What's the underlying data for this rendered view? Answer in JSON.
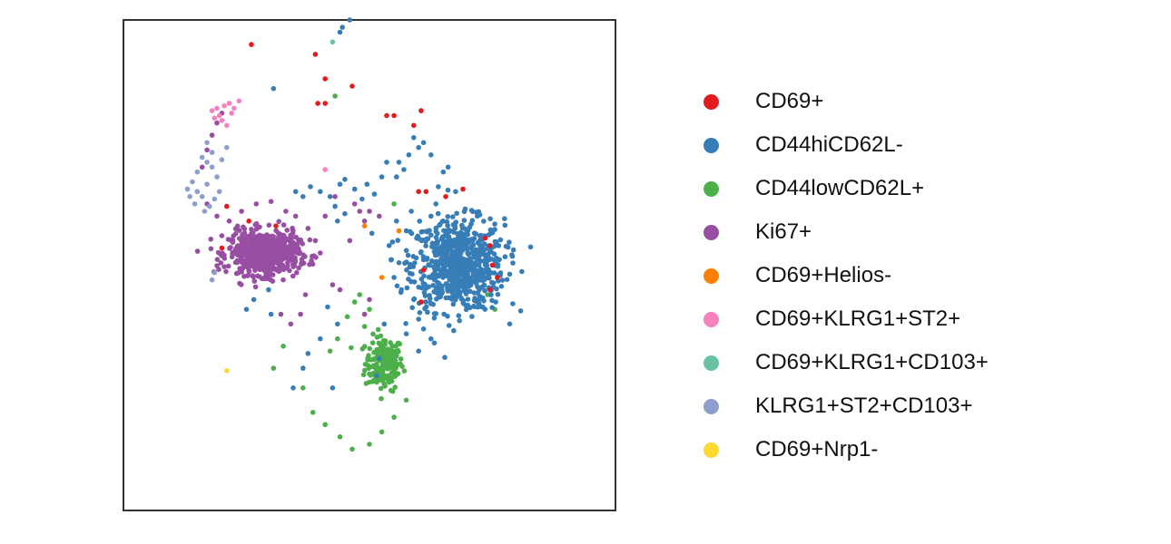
{
  "chart_data": {
    "type": "scatter",
    "title": "",
    "xlabel": "",
    "ylabel": "",
    "axes_ticks": "none",
    "grid": false,
    "legend_position": "right",
    "series": [
      {
        "name": "CD69+",
        "color": "#e41a1c",
        "points": [
          [
            -0.48,
            0.9
          ],
          [
            -0.22,
            0.86
          ],
          [
            -0.18,
            0.76
          ],
          [
            -0.07,
            0.73
          ],
          [
            0.07,
            0.61
          ],
          [
            0.1,
            0.61
          ],
          [
            -0.21,
            0.66
          ],
          [
            -0.18,
            0.66
          ],
          [
            0.21,
            0.63
          ],
          [
            0.18,
            0.57
          ],
          [
            -0.58,
            0.24
          ],
          [
            -0.6,
            0.07
          ],
          [
            -0.49,
            0.18
          ],
          [
            -0.38,
            0.16
          ],
          [
            0.23,
            0.3
          ],
          [
            0.31,
            0.28
          ],
          [
            0.38,
            0.31
          ],
          [
            0.47,
            0.11
          ],
          [
            0.52,
            -0.05
          ],
          [
            0.49,
            -0.1
          ],
          [
            0.21,
            -0.15
          ],
          [
            0.2,
            0.3
          ],
          [
            0.22,
            -0.02
          ],
          [
            0.49,
            0.08
          ],
          [
            0.5,
            0.0
          ]
        ]
      },
      {
        "name": "CD44hiCD62L-",
        "cluster": {
          "center": [
            0.36,
            0.0
          ],
          "spread": [
            0.17,
            0.17
          ],
          "count": 700
        },
        "color": "#377eb8",
        "points": [
          [
            -0.08,
            1.0
          ],
          [
            -0.11,
            0.97
          ],
          [
            -0.12,
            0.95
          ],
          [
            -0.39,
            0.72
          ],
          [
            -0.3,
            0.3
          ],
          [
            -0.27,
            0.28
          ],
          [
            -0.24,
            0.32
          ],
          [
            -0.2,
            0.3
          ],
          [
            -0.16,
            0.28
          ],
          [
            -0.14,
            0.24
          ],
          [
            -0.12,
            0.33
          ],
          [
            -0.1,
            0.35
          ],
          [
            -0.06,
            0.31
          ],
          [
            -0.03,
            0.27
          ],
          [
            -0.01,
            0.33
          ],
          [
            0.02,
            0.29
          ],
          [
            0.05,
            0.36
          ],
          [
            0.07,
            0.42
          ],
          [
            0.11,
            0.36
          ],
          [
            0.14,
            0.39
          ],
          [
            0.16,
            0.45
          ],
          [
            0.2,
            0.48
          ],
          [
            0.22,
            0.5
          ],
          [
            0.25,
            0.45
          ],
          [
            0.18,
            0.52
          ],
          [
            0.12,
            0.42
          ],
          [
            0.3,
            0.38
          ],
          [
            0.32,
            0.4
          ],
          [
            0.35,
            0.3
          ],
          [
            0.27,
            0.25
          ],
          [
            0.28,
            0.32
          ],
          [
            0.25,
            0.2
          ],
          [
            0.15,
            0.14
          ],
          [
            0.11,
            0.18
          ],
          [
            0.17,
            0.22
          ],
          [
            -0.1,
            0.21
          ],
          [
            -0.13,
            0.18
          ],
          [
            0.01,
            0.13
          ],
          [
            0.08,
            0.08
          ],
          [
            0.15,
            0.06
          ],
          [
            0.12,
            0.01
          ],
          [
            0.1,
            -0.05
          ],
          [
            0.13,
            -0.1
          ],
          [
            0.18,
            -0.14
          ],
          [
            0.2,
            -0.22
          ],
          [
            0.22,
            -0.26
          ],
          [
            0.25,
            -0.3
          ],
          [
            0.15,
            -0.28
          ],
          [
            0.06,
            -0.24
          ],
          [
            -0.13,
            -0.24
          ],
          [
            -0.17,
            -0.17
          ],
          [
            -0.2,
            -0.3
          ],
          [
            -0.25,
            -0.36
          ],
          [
            -0.27,
            -0.42
          ],
          [
            -0.31,
            -0.5
          ],
          [
            -0.15,
            -0.5
          ],
          [
            -0.41,
            -0.1
          ],
          [
            -0.47,
            -0.14
          ],
          [
            -0.5,
            -0.18
          ],
          [
            -0.4,
            -0.2
          ],
          [
            0.04,
            -0.38
          ],
          [
            0.03,
            -0.45
          ],
          [
            0.2,
            -0.35
          ]
        ]
      },
      {
        "name": "CD44lowCD62L+",
        "cluster": {
          "center": [
            0.06,
            -0.4
          ],
          "spread": [
            0.07,
            0.1
          ],
          "count": 180
        },
        "color": "#4daf4a",
        "points": [
          [
            -0.14,
            0.69
          ],
          [
            -0.06,
            -0.15
          ],
          [
            -0.04,
            -0.12
          ],
          [
            0.0,
            -0.18
          ],
          [
            -0.09,
            -0.21
          ],
          [
            -0.02,
            -0.25
          ],
          [
            -0.13,
            -0.3
          ],
          [
            -0.16,
            -0.35
          ],
          [
            -0.35,
            -0.33
          ],
          [
            -0.39,
            -0.42
          ],
          [
            -0.27,
            -0.5
          ],
          [
            -0.23,
            -0.6
          ],
          [
            -0.18,
            -0.65
          ],
          [
            -0.12,
            -0.7
          ],
          [
            -0.07,
            -0.75
          ],
          [
            0.0,
            -0.73
          ],
          [
            0.05,
            -0.68
          ],
          [
            0.1,
            -0.62
          ],
          [
            0.15,
            -0.55
          ],
          [
            0.1,
            0.25
          ],
          [
            0.48,
            -0.12
          ],
          [
            0.51,
            -0.18
          ]
        ]
      },
      {
        "name": "Ki67+",
        "cluster": {
          "center": [
            -0.43,
            0.05
          ],
          "spread": [
            0.13,
            0.08
          ],
          "count": 650
        },
        "color": "#984ea3",
        "points": [
          [
            -0.62,
            0.58
          ],
          [
            -0.6,
            0.62
          ],
          [
            -0.64,
            0.53
          ],
          [
            -0.66,
            0.47
          ],
          [
            -0.68,
            0.4
          ],
          [
            -0.7,
            0.3
          ],
          [
            -0.66,
            0.25
          ],
          [
            -0.62,
            0.2
          ],
          [
            -0.6,
            0.12
          ],
          [
            -0.57,
            0.18
          ],
          [
            -0.52,
            0.22
          ],
          [
            -0.46,
            0.25
          ],
          [
            -0.4,
            0.26
          ],
          [
            -0.34,
            0.22
          ],
          [
            -0.3,
            0.2
          ],
          [
            -0.25,
            0.15
          ],
          [
            -0.22,
            0.1
          ],
          [
            -0.2,
            0.05
          ],
          [
            -0.18,
            0.2
          ],
          [
            -0.14,
            0.28
          ],
          [
            -0.06,
            0.25
          ],
          [
            -0.04,
            0.22
          ],
          [
            -0.02,
            0.18
          ],
          [
            0.0,
            0.22
          ],
          [
            0.04,
            0.2
          ],
          [
            -0.08,
            0.1
          ],
          [
            -0.12,
            -0.1
          ],
          [
            -0.15,
            -0.08
          ],
          [
            -0.28,
            -0.2
          ],
          [
            -0.32,
            -0.24
          ],
          [
            -0.36,
            -0.2
          ],
          [
            -0.26,
            -0.12
          ],
          [
            -0.02,
            -0.2
          ],
          [
            0.0,
            -0.14
          ]
        ]
      },
      {
        "name": "CD69+Helios-",
        "color": "#ff7f00",
        "points": [
          [
            -0.02,
            0.16
          ],
          [
            0.05,
            -0.05
          ],
          [
            0.12,
            0.14
          ]
        ]
      },
      {
        "name": "CD69+KLRG1+ST2+",
        "color": "#f781bf",
        "points": [
          [
            -0.64,
            0.63
          ],
          [
            -0.62,
            0.64
          ],
          [
            -0.61,
            0.61
          ],
          [
            -0.59,
            0.65
          ],
          [
            -0.57,
            0.66
          ],
          [
            -0.56,
            0.62
          ],
          [
            -0.6,
            0.59
          ],
          [
            -0.53,
            0.67
          ],
          [
            -0.58,
            0.57
          ],
          [
            -0.63,
            0.6
          ],
          [
            -0.55,
            0.64
          ],
          [
            -0.18,
            0.39
          ]
        ]
      },
      {
        "name": "CD69+KLRG1+CD103+",
        "color": "#66c2a5",
        "points": [
          [
            -0.15,
            0.91
          ]
        ]
      },
      {
        "name": "KLRG1+ST2+CD103+",
        "color": "#8da0cb",
        "points": [
          [
            -0.66,
            0.5
          ],
          [
            -0.64,
            0.46
          ],
          [
            -0.68,
            0.44
          ],
          [
            -0.66,
            0.42
          ],
          [
            -0.7,
            0.38
          ],
          [
            -0.72,
            0.34
          ],
          [
            -0.7,
            0.3
          ],
          [
            -0.68,
            0.28
          ],
          [
            -0.74,
            0.31
          ],
          [
            -0.66,
            0.33
          ],
          [
            -0.62,
            0.36
          ],
          [
            -0.61,
            0.3
          ],
          [
            -0.63,
            0.27
          ],
          [
            -0.71,
            0.25
          ],
          [
            -0.67,
            0.22
          ],
          [
            -0.64,
            0.4
          ],
          [
            -0.6,
            0.43
          ],
          [
            -0.58,
            0.48
          ],
          [
            -0.73,
            0.28
          ],
          [
            -0.65,
            0.24
          ],
          [
            -0.63,
            -0.03
          ],
          [
            -0.64,
            -0.06
          ]
        ]
      },
      {
        "name": "CD69+Nrp1-",
        "color": "#ffd92f",
        "points": [
          [
            -0.58,
            -0.43
          ]
        ]
      }
    ]
  },
  "legend": {
    "items": [
      {
        "label": "CD69+",
        "color": "#e41a1c"
      },
      {
        "label": "CD44hiCD62L-",
        "color": "#377eb8"
      },
      {
        "label": "CD44lowCD62L+",
        "color": "#4daf4a"
      },
      {
        "label": "Ki67+",
        "color": "#984ea3"
      },
      {
        "label": "CD69+Helios-",
        "color": "#ff7f00"
      },
      {
        "label": "CD69+KLRG1+ST2+",
        "color": "#f781bf"
      },
      {
        "label": "CD69+KLRG1+CD103+",
        "color": "#66c2a5"
      },
      {
        "label": "KLRG1+ST2+CD103+",
        "color": "#8da0cb"
      },
      {
        "label": "CD69+Nrp1-",
        "color": "#ffd92f"
      }
    ]
  }
}
